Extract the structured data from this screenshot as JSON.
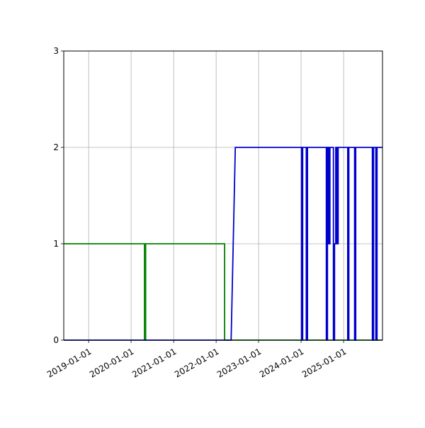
{
  "chart_data": {
    "type": "line",
    "x_axis": {
      "kind": "date",
      "range": [
        "2018-06-01",
        "2025-12-01"
      ],
      "ticks": [
        "2019-01-01",
        "2020-01-01",
        "2021-01-01",
        "2022-01-01",
        "2023-01-01",
        "2024-01-01",
        "2025-01-01"
      ]
    },
    "y_axis": {
      "range": [
        0,
        3
      ],
      "ticks": [
        "0",
        "1",
        "2",
        "3"
      ]
    },
    "grid": true,
    "series": [
      {
        "color": "#008000",
        "points": [
          [
            "2018-06-01",
            1
          ],
          [
            "2020-04-25",
            1
          ],
          [
            "2020-04-25",
            0
          ],
          [
            "2020-05-05",
            0
          ],
          [
            "2020-05-05",
            1
          ],
          [
            "2022-03-15",
            1
          ],
          [
            "2022-03-15",
            0
          ],
          [
            "2025-12-01",
            0
          ]
        ]
      },
      {
        "color": "#0000cc",
        "points": [
          [
            "2018-06-01",
            0
          ],
          [
            "2022-05-10",
            0
          ],
          [
            "2022-06-15",
            2
          ],
          [
            "2024-01-05",
            2
          ],
          [
            "2024-01-05",
            0
          ],
          [
            "2024-01-15",
            0
          ],
          [
            "2024-01-15",
            2
          ],
          [
            "2024-02-15",
            2
          ],
          [
            "2024-02-15",
            0
          ],
          [
            "2024-02-25",
            0
          ],
          [
            "2024-02-25",
            2
          ],
          [
            "2024-08-05",
            2
          ],
          [
            "2024-08-05",
            0
          ],
          [
            "2024-08-15",
            0
          ],
          [
            "2024-08-15",
            2
          ],
          [
            "2024-08-25",
            2
          ],
          [
            "2024-08-25",
            1
          ],
          [
            "2024-09-05",
            1
          ],
          [
            "2024-09-05",
            2
          ],
          [
            "2024-10-05",
            2
          ],
          [
            "2024-10-05",
            0
          ],
          [
            "2024-10-15",
            0
          ],
          [
            "2024-10-15",
            1
          ],
          [
            "2024-10-25",
            1
          ],
          [
            "2024-10-25",
            2
          ],
          [
            "2024-11-05",
            2
          ],
          [
            "2024-11-05",
            1
          ],
          [
            "2024-11-15",
            1
          ],
          [
            "2024-11-15",
            2
          ],
          [
            "2025-02-05",
            2
          ],
          [
            "2025-02-05",
            0
          ],
          [
            "2025-02-15",
            0
          ],
          [
            "2025-02-15",
            2
          ],
          [
            "2025-04-05",
            2
          ],
          [
            "2025-04-05",
            0
          ],
          [
            "2025-04-15",
            0
          ],
          [
            "2025-04-15",
            2
          ],
          [
            "2025-09-05",
            2
          ],
          [
            "2025-09-05",
            0
          ],
          [
            "2025-09-15",
            0
          ],
          [
            "2025-09-15",
            2
          ],
          [
            "2025-10-05",
            2
          ],
          [
            "2025-10-05",
            0
          ],
          [
            "2025-10-15",
            0
          ],
          [
            "2025-10-15",
            2
          ],
          [
            "2025-12-01",
            2
          ]
        ]
      }
    ]
  }
}
